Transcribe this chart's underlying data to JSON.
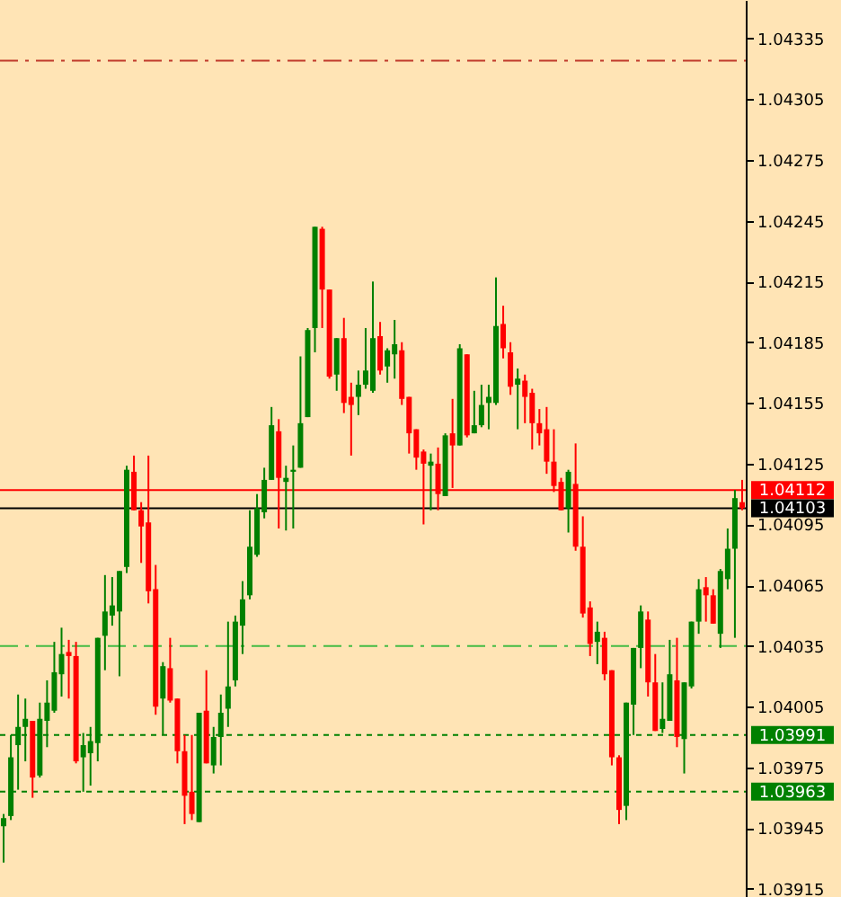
{
  "chart_data": {
    "type": "candlestick",
    "categories": [
      null,
      null,
      null,
      null,
      null,
      null,
      null,
      null,
      null,
      null,
      null,
      null,
      null,
      null,
      null,
      null,
      null,
      null,
      null,
      null,
      null,
      null,
      null,
      null,
      null,
      null,
      null,
      null,
      null,
      null,
      null,
      null,
      null,
      null,
      null,
      null,
      null,
      null,
      null,
      null,
      null,
      null,
      null,
      null,
      null,
      null,
      null,
      null,
      null,
      null,
      null,
      null,
      null,
      null,
      null,
      null,
      null,
      null,
      null,
      null,
      null,
      null,
      null,
      null,
      null,
      null,
      null,
      null,
      null,
      null,
      null,
      null,
      null,
      null,
      null,
      null,
      null,
      null,
      null,
      null,
      null,
      null,
      null,
      null,
      null,
      null,
      null,
      null,
      null,
      null,
      null,
      null,
      null,
      null,
      null,
      null,
      null,
      null,
      null,
      null,
      null,
      null,
      null
    ],
    "ohlc": [
      [
        1.03946,
        1.03952,
        1.03928,
        1.0395
      ],
      [
        1.03951,
        1.03991,
        1.03949,
        1.0398
      ],
      [
        1.03986,
        1.04011,
        1.03964,
        1.03995
      ],
      [
        1.03995,
        1.04009,
        1.03978,
        1.03999
      ],
      [
        1.03998,
        1.03998,
        1.0396,
        1.0397
      ],
      [
        1.03971,
        1.04007,
        1.0397,
        1.03999
      ],
      [
        1.03998,
        1.04018,
        1.03985,
        1.04007
      ],
      [
        1.04003,
        1.04037,
        1.04002,
        1.04022
      ],
      [
        1.04021,
        1.04044,
        1.0401,
        1.04031
      ],
      [
        1.04032,
        1.04038,
        1.04009,
        1.0403
      ],
      [
        1.0403,
        1.04037,
        1.03977,
        1.03978
      ],
      [
        1.0398,
        1.03992,
        1.03963,
        1.03986
      ],
      [
        1.03982,
        1.03995,
        1.03966,
        1.03988
      ],
      [
        1.03987,
        1.04039,
        1.03978,
        1.04039
      ],
      [
        1.0404,
        1.0407,
        1.04023,
        1.04052
      ],
      [
        1.0405,
        1.04069,
        1.04045,
        1.04055
      ],
      [
        1.04052,
        1.04072,
        1.0402,
        1.04072
      ],
      [
        1.04074,
        1.04124,
        1.04071,
        1.04122
      ],
      [
        1.04121,
        1.04129,
        1.04102,
        1.04102
      ],
      [
        1.04102,
        1.04106,
        1.04076,
        1.04094
      ],
      [
        1.04096,
        1.04129,
        1.04056,
        1.04062
      ],
      [
        1.04063,
        1.04075,
        1.04001,
        1.04005
      ],
      [
        1.04009,
        1.04027,
        1.03991,
        1.04025
      ],
      [
        1.04024,
        1.04039,
        1.04007,
        1.04008
      ],
      [
        1.04009,
        1.04009,
        1.03977,
        1.03983
      ],
      [
        1.03983,
        1.03991,
        1.03947,
        1.03961
      ],
      [
        1.03963,
        1.03991,
        1.03949,
        1.03952
      ],
      [
        1.03948,
        1.04002,
        1.03948,
        1.04002
      ],
      [
        1.04003,
        1.04023,
        1.03977,
        1.03977
      ],
      [
        1.03976,
        1.03995,
        1.03972,
        1.0399
      ],
      [
        1.0399,
        1.04011,
        1.03976,
        1.04002
      ],
      [
        1.04004,
        1.04047,
        1.03995,
        1.04015
      ],
      [
        1.04018,
        1.0405,
        1.04015,
        1.04047
      ],
      [
        1.04045,
        1.04067,
        1.04031,
        1.04058
      ],
      [
        1.0406,
        1.04102,
        1.04058,
        1.04084
      ],
      [
        1.0408,
        1.0411,
        1.04079,
        1.04103
      ],
      [
        1.04101,
        1.04123,
        1.04098,
        1.04117
      ],
      [
        1.04117,
        1.04153,
        1.04117,
        1.04144
      ],
      [
        1.04141,
        1.04147,
        1.04093,
        1.04118
      ],
      [
        1.04116,
        1.04124,
        1.04092,
        1.04118
      ],
      [
        1.04121,
        1.04134,
        1.04093,
        1.04122
      ],
      [
        1.04123,
        1.04178,
        1.04123,
        1.04145
      ],
      [
        1.04148,
        1.04192,
        1.04148,
        1.04191
      ],
      [
        1.04192,
        1.04242,
        1.0418,
        1.04242
      ],
      [
        1.04241,
        1.04242,
        1.04192,
        1.04211
      ],
      [
        1.04211,
        1.04211,
        1.04167,
        1.04168
      ],
      [
        1.04169,
        1.04187,
        1.04161,
        1.04187
      ],
      [
        1.04187,
        1.04197,
        1.0415,
        1.04155
      ],
      [
        1.04158,
        1.04165,
        1.04129,
        1.04154
      ],
      [
        1.04158,
        1.04171,
        1.04149,
        1.04164
      ],
      [
        1.04164,
        1.04192,
        1.04162,
        1.04171
      ],
      [
        1.04161,
        1.04215,
        1.0416,
        1.04187
      ],
      [
        1.04188,
        1.04195,
        1.04169,
        1.04171
      ],
      [
        1.04173,
        1.04182,
        1.04165,
        1.04181
      ],
      [
        1.04179,
        1.04196,
        1.04167,
        1.04184
      ],
      [
        1.04181,
        1.04185,
        1.04154,
        1.04157
      ],
      [
        1.04158,
        1.04158,
        1.0413,
        1.0414
      ],
      [
        1.04142,
        1.04142,
        1.04122,
        1.04128
      ],
      [
        1.04131,
        1.04132,
        1.04095,
        1.04125
      ],
      [
        1.04124,
        1.0413,
        1.04102,
        1.04126
      ],
      [
        1.04125,
        1.04133,
        1.04102,
        1.0411
      ],
      [
        1.04109,
        1.0414,
        1.04109,
        1.04139
      ],
      [
        1.0414,
        1.04157,
        1.04113,
        1.04134
      ],
      [
        1.04134,
        1.04184,
        1.04134,
        1.04182
      ],
      [
        1.04179,
        1.04179,
        1.04138,
        1.04139
      ],
      [
        1.0414,
        1.04161,
        1.0414,
        1.04144
      ],
      [
        1.04144,
        1.04164,
        1.04143,
        1.04154
      ],
      [
        1.04155,
        1.04164,
        1.04142,
        1.04158
      ],
      [
        1.04155,
        1.04217,
        1.04154,
        1.04193
      ],
      [
        1.04194,
        1.04203,
        1.04177,
        1.04182
      ],
      [
        1.0418,
        1.04185,
        1.04159,
        1.04163
      ],
      [
        1.04164,
        1.04172,
        1.04142,
        1.04167
      ],
      [
        1.04166,
        1.04169,
        1.04145,
        1.04158
      ],
      [
        1.0416,
        1.04162,
        1.04132,
        1.04145
      ],
      [
        1.04145,
        1.04152,
        1.04134,
        1.0414
      ],
      [
        1.04142,
        1.04153,
        1.0412,
        1.04126
      ],
      [
        1.04126,
        1.04142,
        1.04111,
        1.04114
      ],
      [
        1.04116,
        1.04118,
        1.04102,
        1.04102
      ],
      [
        1.04103,
        1.04122,
        1.04091,
        1.04121
      ],
      [
        1.04115,
        1.04135,
        1.04082,
        1.04084
      ],
      [
        1.04084,
        1.04099,
        1.04049,
        1.04051
      ],
      [
        1.04054,
        1.04057,
        1.0403,
        1.04036
      ],
      [
        1.04037,
        1.04047,
        1.04026,
        1.04042
      ],
      [
        1.04039,
        1.04042,
        1.04018,
        1.04021
      ],
      [
        1.04023,
        1.04023,
        1.03976,
        1.0398
      ],
      [
        1.0398,
        1.03981,
        1.03947,
        1.03954
      ],
      [
        1.03956,
        1.04007,
        1.03949,
        1.04007
      ],
      [
        1.04006,
        1.04034,
        1.03991,
        1.04034
      ],
      [
        1.04034,
        1.04055,
        1.04024,
        1.04052
      ],
      [
        1.04048,
        1.04052,
        1.0401,
        1.04017
      ],
      [
        1.04017,
        1.04031,
        1.03993,
        1.03993
      ],
      [
        1.03994,
        1.04017,
        1.03992,
        1.03999
      ],
      [
        1.03998,
        1.04038,
        1.03998,
        1.04021
      ],
      [
        1.04018,
        1.04039,
        1.03985,
        1.0399
      ],
      [
        1.03989,
        1.04017,
        1.03972,
        1.04017
      ],
      [
        1.04015,
        1.04047,
        1.04014,
        1.04047
      ],
      [
        1.04047,
        1.04068,
        1.04041,
        1.04063
      ],
      [
        1.04064,
        1.04069,
        1.04047,
        1.0406
      ],
      [
        1.0406,
        1.04063,
        1.04046,
        1.04046
      ],
      [
        1.04041,
        1.04073,
        1.04034,
        1.04072
      ],
      [
        1.04068,
        1.04093,
        1.04063,
        1.04083
      ],
      [
        1.04083,
        1.04112,
        1.04039,
        1.04108
      ],
      [
        1.04106,
        1.04117,
        1.04102,
        1.04103
      ]
    ],
    "colors": [
      "#008000",
      "#008000",
      "#008000",
      "#008000",
      "#ff0000",
      "#008000",
      "#008000",
      "#008000",
      "#008000",
      "#ff0000",
      "#ff0000",
      "#008000",
      "#008000",
      "#008000",
      "#008000",
      "#008000",
      "#008000",
      "#008000",
      "#ff0000",
      "#ff0000",
      "#ff0000",
      "#ff0000",
      "#008000",
      "#ff0000",
      "#ff0000",
      "#ff0000",
      "#ff0000",
      "#008000",
      "#ff0000",
      "#008000",
      "#008000",
      "#008000",
      "#008000",
      "#008000",
      "#008000",
      "#008000",
      "#008000",
      "#008000",
      "#ff0000",
      "#008000",
      "#008000",
      "#008000",
      "#008000",
      "#008000",
      "#ff0000",
      "#ff0000",
      "#008000",
      "#ff0000",
      "#ff0000",
      "#008000",
      "#008000",
      "#008000",
      "#ff0000",
      "#008000",
      "#008000",
      "#ff0000",
      "#ff0000",
      "#ff0000",
      "#ff0000",
      "#008000",
      "#ff0000",
      "#008000",
      "#ff0000",
      "#008000",
      "#ff0000",
      "#008000",
      "#008000",
      "#008000",
      "#008000",
      "#ff0000",
      "#ff0000",
      "#008000",
      "#ff0000",
      "#ff0000",
      "#ff0000",
      "#ff0000",
      "#ff0000",
      "#ff0000",
      "#008000",
      "#ff0000",
      "#ff0000",
      "#ff0000",
      "#008000",
      "#ff0000",
      "#ff0000",
      "#ff0000",
      "#008000",
      "#008000",
      "#008000",
      "#ff0000",
      "#ff0000",
      "#008000",
      "#008000",
      "#ff0000",
      "#008000",
      "#008000",
      "#008000",
      "#ff0000",
      "#ff0000",
      "#008000",
      "#008000",
      "#008000",
      "#ff0000"
    ],
    "ylim": [
      1.03911,
      1.04354
    ],
    "yticks": [
      1.03915,
      1.03945,
      1.03975,
      1.04005,
      1.04035,
      1.04065,
      1.04095,
      1.04125,
      1.04155,
      1.04185,
      1.04215,
      1.04245,
      1.04275,
      1.04305,
      1.04335
    ],
    "tick_labels": "y",
    "grid": false,
    "ref_lines": [
      {
        "axis": "y",
        "value": 1.04324,
        "color": "#c0392b",
        "line_style": "dashed"
      },
      {
        "axis": "y",
        "value": 1.04112,
        "label": "1.04112",
        "color": "#ff0000",
        "line_style": "solid"
      },
      {
        "axis": "y",
        "value": 1.04103,
        "label": "1.04103",
        "color": "#000000",
        "line_style": "solid"
      },
      {
        "axis": "y",
        "value": 1.04035,
        "color": "#44bb44",
        "line_style": "dashed"
      },
      {
        "axis": "y",
        "value": 1.03991,
        "label": "1.03991",
        "color": "#008000",
        "line_style": "dotted"
      },
      {
        "axis": "y",
        "value": 1.03963,
        "label": "1.03963",
        "color": "#008000",
        "line_style": "dotted"
      }
    ]
  }
}
